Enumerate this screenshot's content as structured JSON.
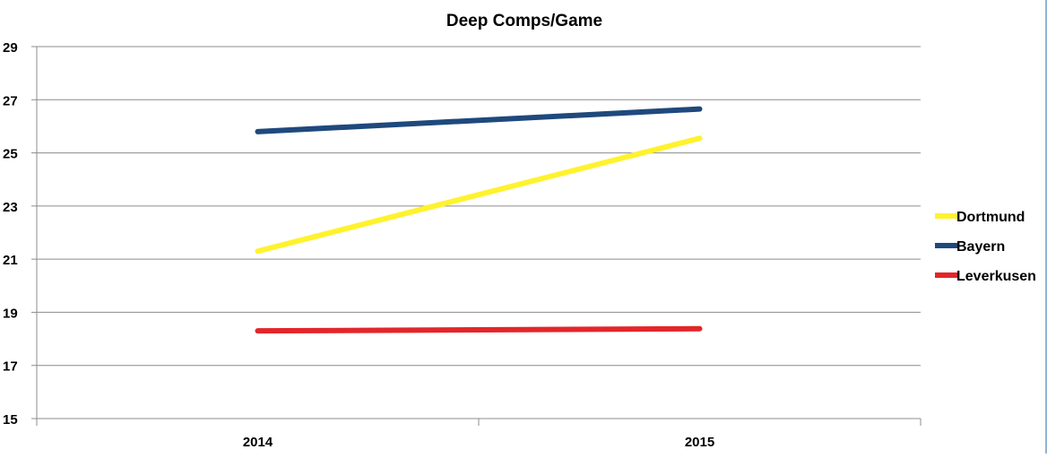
{
  "chart_data": {
    "type": "line",
    "title": "Deep Comps/Game",
    "xlabel": "",
    "ylabel": "",
    "categories": [
      "2014",
      "2015"
    ],
    "ylim": [
      15,
      29
    ],
    "yticks": [
      "15",
      "17",
      "19",
      "21",
      "23",
      "25",
      "27",
      "29"
    ],
    "grid": true,
    "legend_position": "right",
    "series": [
      {
        "name": "Dortmund",
        "color": "#FFF22E",
        "values": [
          21.3,
          25.55
        ]
      },
      {
        "name": "Bayern",
        "color": "#1F497D",
        "values": [
          25.8,
          26.65
        ]
      },
      {
        "name": "Leverkusen",
        "color": "#E3262A",
        "values": [
          18.3,
          18.38
        ]
      }
    ]
  }
}
